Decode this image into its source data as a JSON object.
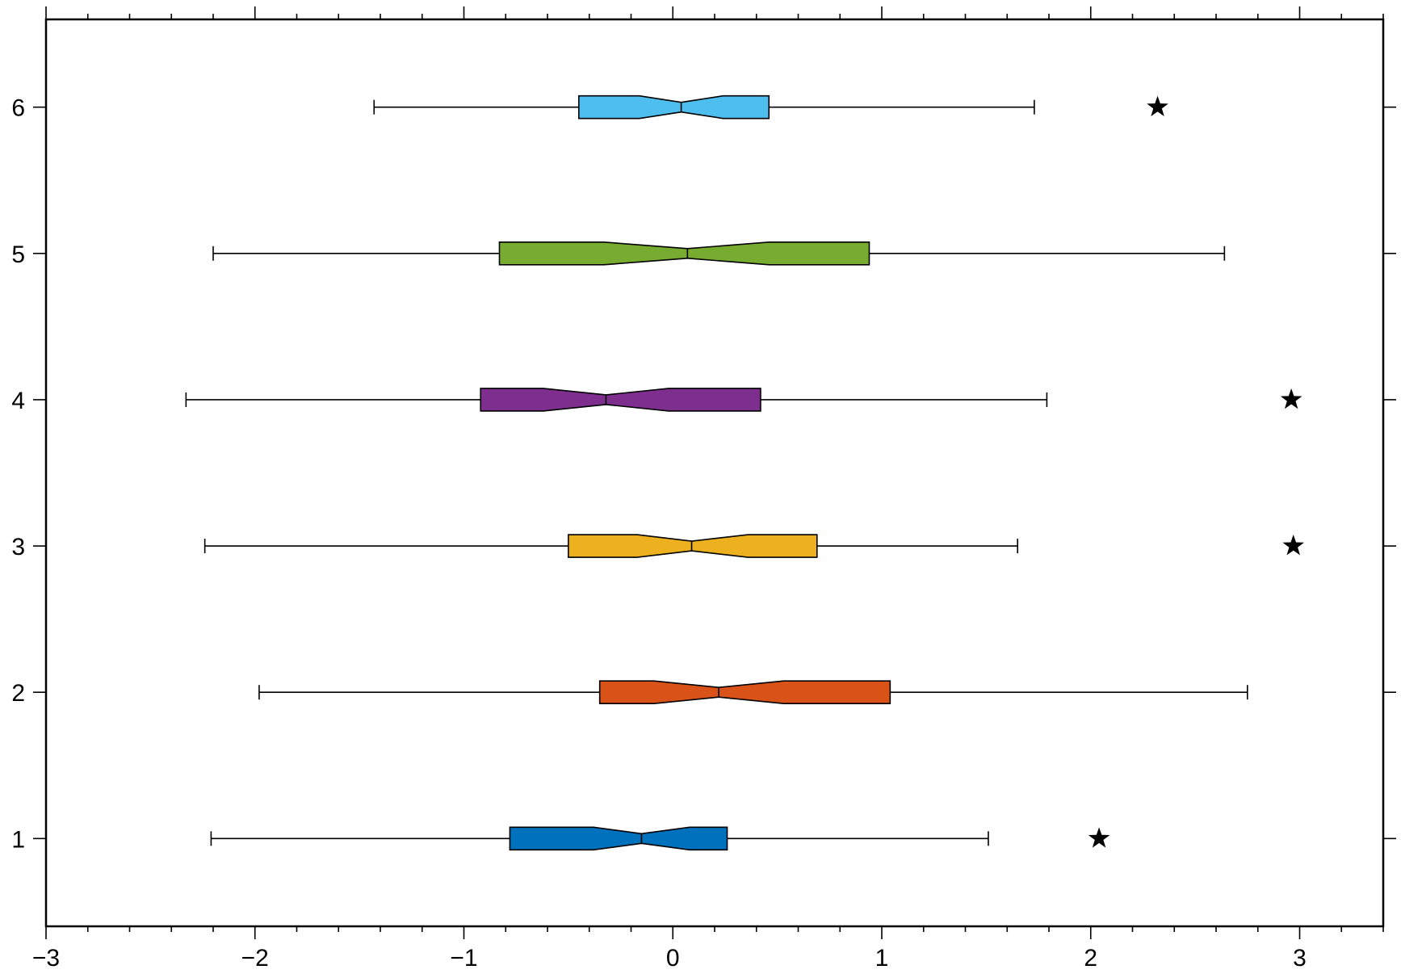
{
  "chart_data": {
    "type": "boxplot",
    "orientation": "horizontal",
    "notched": true,
    "title": "",
    "xlabel": "",
    "ylabel": "",
    "xlim": [
      -3,
      3.4
    ],
    "ylim": [
      0.4,
      6.6
    ],
    "x_ticks": [
      {
        "value": -3,
        "label": "−3"
      },
      {
        "value": -2,
        "label": "−2"
      },
      {
        "value": -1,
        "label": "−1"
      },
      {
        "value": 0,
        "label": "0"
      },
      {
        "value": 1,
        "label": "1"
      },
      {
        "value": 2,
        "label": "2"
      },
      {
        "value": 3,
        "label": "3"
      }
    ],
    "y_ticks": [
      {
        "value": 1,
        "label": "1"
      },
      {
        "value": 2,
        "label": "2"
      },
      {
        "value": 3,
        "label": "3"
      },
      {
        "value": 4,
        "label": "4"
      },
      {
        "value": 5,
        "label": "5"
      },
      {
        "value": 6,
        "label": "6"
      }
    ],
    "grid": false,
    "outlier_marker": "star",
    "boxes": [
      {
        "position": 1,
        "color": "#0072BD",
        "whisker_low": -2.21,
        "q1": -0.78,
        "notch_low": -0.38,
        "median": -0.15,
        "notch_high": 0.08,
        "q3": 0.26,
        "whisker_high": 1.51,
        "outliers": [
          2.04
        ]
      },
      {
        "position": 2,
        "color": "#D95319",
        "whisker_low": -1.98,
        "q1": -0.35,
        "notch_low": -0.09,
        "median": 0.22,
        "notch_high": 0.53,
        "q3": 1.04,
        "whisker_high": 2.75,
        "outliers": []
      },
      {
        "position": 3,
        "color": "#EDB120",
        "whisker_low": -2.24,
        "q1": -0.5,
        "notch_low": -0.17,
        "median": 0.09,
        "notch_high": 0.36,
        "q3": 0.69,
        "whisker_high": 1.65,
        "outliers": [
          2.97
        ]
      },
      {
        "position": 4,
        "color": "#7E2F8E",
        "whisker_low": -2.33,
        "q1": -0.92,
        "notch_low": -0.62,
        "median": -0.32,
        "notch_high": -0.02,
        "q3": 0.42,
        "whisker_high": 1.79,
        "outliers": [
          2.96
        ]
      },
      {
        "position": 5,
        "color": "#77AC30",
        "whisker_low": -2.2,
        "q1": -0.83,
        "notch_low": -0.33,
        "median": 0.07,
        "notch_high": 0.46,
        "q3": 0.94,
        "whisker_high": 2.64,
        "outliers": []
      },
      {
        "position": 6,
        "color": "#4DBEEE",
        "whisker_low": -1.43,
        "q1": -0.45,
        "notch_low": -0.16,
        "median": 0.04,
        "notch_high": 0.24,
        "q3": 0.46,
        "whisker_high": 1.73,
        "outliers": [
          2.32
        ]
      }
    ]
  }
}
